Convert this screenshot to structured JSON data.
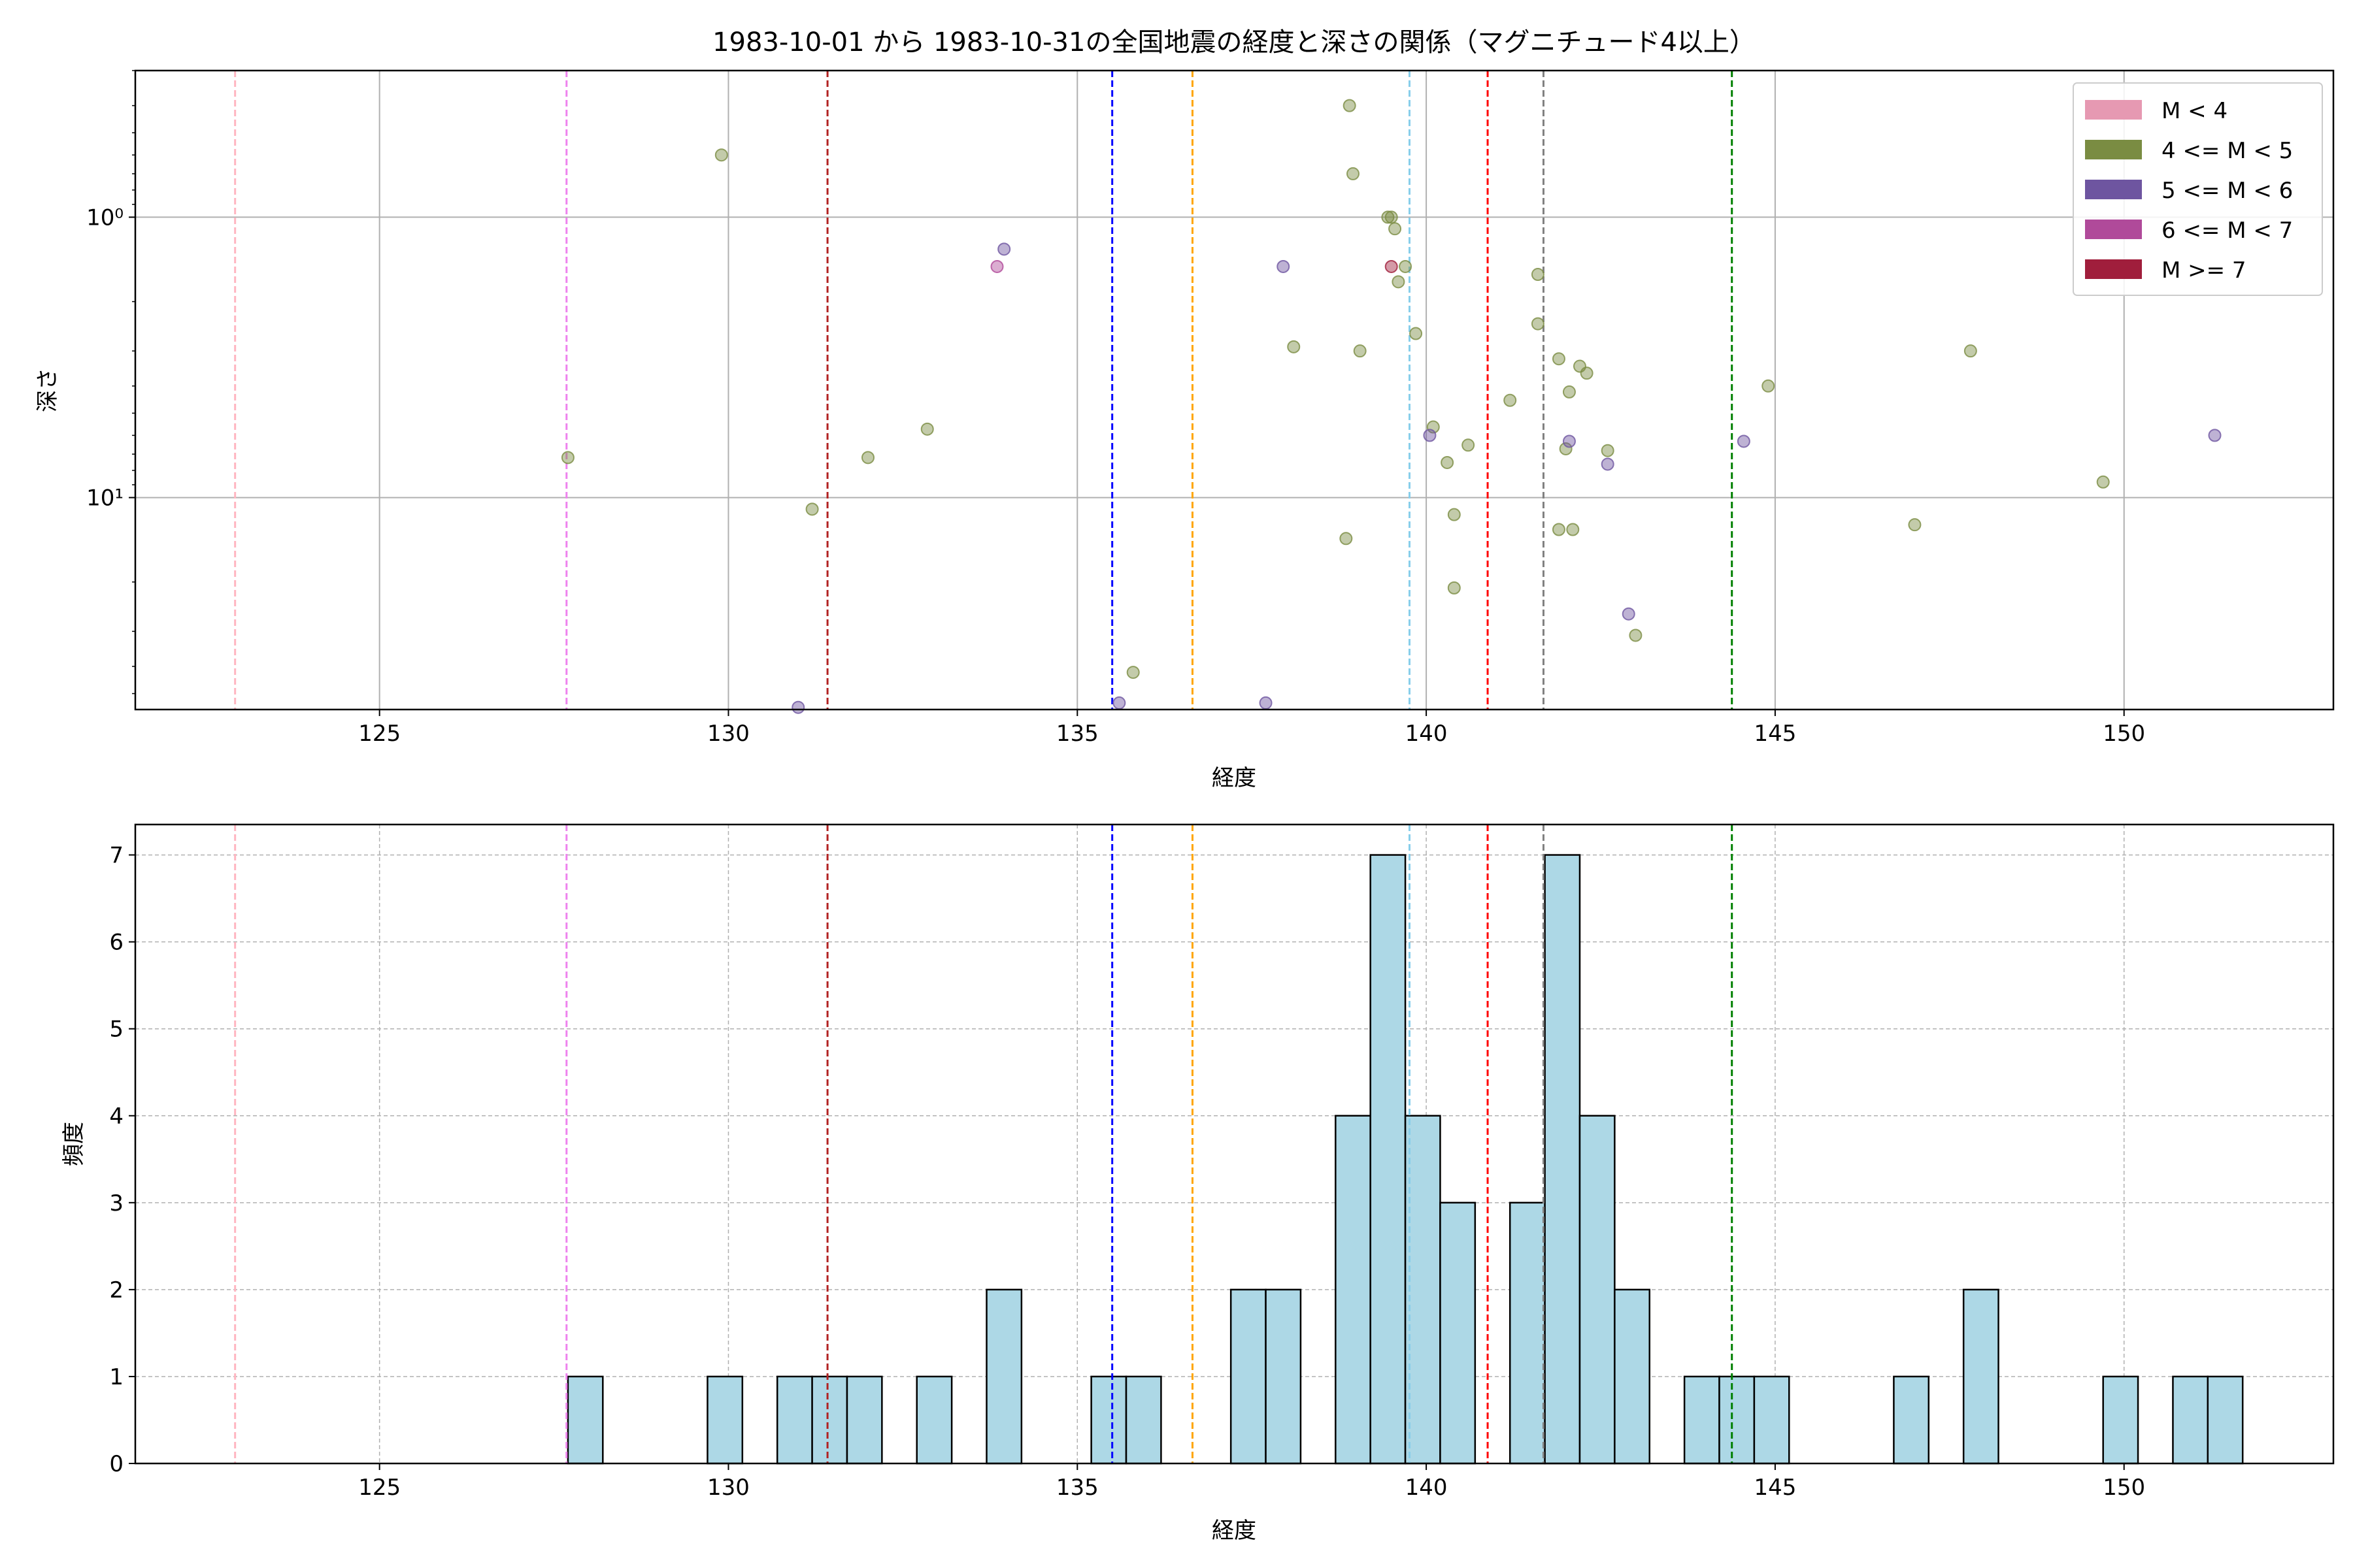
{
  "figure": {
    "title": "1983-10-01 から 1983-10-31の全国地震の経度と深さの関係（マグニチュード4以上）"
  },
  "colors": {
    "m_lt4": "#e699b2",
    "m_4_5": "#7a8c42",
    "m_5_6": "#6e55a0",
    "m_6_7": "#b04a9a",
    "m_ge7": "#a01e3c",
    "hist_fill": "#add8e6",
    "grid": "#b0b0b0"
  },
  "reference_lines": [
    {
      "x": 122.93,
      "color": "#ffb6c1"
    },
    {
      "x": 127.68,
      "color": "#ee82ee"
    },
    {
      "x": 131.42,
      "color": "#b22222"
    },
    {
      "x": 135.5,
      "color": "#0000ff"
    },
    {
      "x": 136.65,
      "color": "#ffa500"
    },
    {
      "x": 139.76,
      "color": "#87ceeb"
    },
    {
      "x": 140.88,
      "color": "#ff0000"
    },
    {
      "x": 141.68,
      "color": "#808080"
    },
    {
      "x": 144.38,
      "color": "#008000"
    }
  ],
  "chart_data": [
    {
      "type": "scatter",
      "title": "1983-10-01 から 1983-10-31の全国地震の経度と深さの関係（マグニチュード4以上）",
      "xlabel": "経度",
      "ylabel": "深さ",
      "xlim": [
        121.5,
        153.0
      ],
      "ylim": [
        0.3,
        57
      ],
      "yscale": "log",
      "yinverted": true,
      "grid": true,
      "legend_position": "top-right",
      "xticks": [
        125,
        130,
        135,
        140,
        145,
        150
      ],
      "xtick_labels": [
        "125",
        "130",
        "135",
        "140",
        "145",
        "150"
      ],
      "yticks": [
        1,
        10
      ],
      "ytick_labels": [
        "10⁰",
        "10¹"
      ],
      "legend": [
        {
          "label": "M < 4",
          "color_key": "m_lt4"
        },
        {
          "label": "4 <= M < 5",
          "color_key": "m_4_5"
        },
        {
          "label": "5 <= M < 6",
          "color_key": "m_5_6"
        },
        {
          "label": "6 <= M < 7",
          "color_key": "m_6_7"
        },
        {
          "label": "M >= 7",
          "color_key": "m_ge7"
        }
      ],
      "series": [
        {
          "name": "4 <= M < 5",
          "color_key": "m_4_5",
          "points": [
            [
              127.7,
              7.2
            ],
            [
              129.9,
              0.6
            ],
            [
              131.2,
              11.0
            ],
            [
              132.0,
              7.2
            ],
            [
              132.85,
              5.7
            ],
            [
              135.8,
              42.0
            ],
            [
              138.1,
              2.9
            ],
            [
              138.85,
              14.0
            ],
            [
              138.9,
              0.4
            ],
            [
              138.95,
              0.7
            ],
            [
              139.05,
              3.0
            ],
            [
              139.45,
              1.0
            ],
            [
              139.5,
              1.0
            ],
            [
              139.55,
              1.1
            ],
            [
              139.6,
              1.7
            ],
            [
              139.7,
              1.5
            ],
            [
              139.85,
              2.6
            ],
            [
              140.1,
              5.6
            ],
            [
              140.3,
              7.5
            ],
            [
              140.4,
              11.5
            ],
            [
              140.4,
              21.0
            ],
            [
              140.6,
              6.5
            ],
            [
              141.2,
              4.5
            ],
            [
              141.6,
              1.6
            ],
            [
              141.6,
              2.4
            ],
            [
              141.9,
              3.2
            ],
            [
              141.9,
              13.0
            ],
            [
              142.0,
              6.7
            ],
            [
              142.05,
              4.2
            ],
            [
              142.1,
              13.0
            ],
            [
              142.2,
              3.4
            ],
            [
              142.3,
              3.6
            ],
            [
              142.6,
              6.8
            ],
            [
              143.0,
              31.0
            ],
            [
              144.9,
              4.0
            ],
            [
              147.0,
              12.5
            ],
            [
              147.8,
              3.0
            ],
            [
              149.7,
              8.8
            ]
          ]
        },
        {
          "name": "5 <= M < 6",
          "color_key": "m_5_6",
          "points": [
            [
              131.0,
              56.0
            ],
            [
              133.95,
              1.3
            ],
            [
              135.6,
              54.0
            ],
            [
              137.7,
              54.0
            ],
            [
              137.95,
              1.5
            ],
            [
              140.05,
              6.0
            ],
            [
              142.05,
              6.3
            ],
            [
              142.6,
              7.6
            ],
            [
              142.9,
              26.0
            ],
            [
              144.55,
              6.3
            ],
            [
              151.3,
              6.0
            ]
          ]
        },
        {
          "name": "6 <= M < 7",
          "color_key": "m_6_7",
          "points": [
            [
              133.85,
              1.5
            ]
          ]
        },
        {
          "name": "M >= 7",
          "color_key": "m_ge7",
          "points": [
            [
              139.5,
              1.5
            ]
          ]
        }
      ]
    },
    {
      "type": "bar",
      "subtype": "histogram",
      "xlabel": "経度",
      "ylabel": "頻度",
      "xlim": [
        121.5,
        153.0
      ],
      "ylim": [
        0,
        7.35
      ],
      "grid": true,
      "xticks": [
        125,
        130,
        135,
        140,
        145,
        150
      ],
      "xtick_labels": [
        "125",
        "130",
        "135",
        "140",
        "145",
        "150"
      ],
      "yticks": [
        0,
        1,
        2,
        3,
        4,
        5,
        6,
        7
      ],
      "ytick_labels": [
        "0",
        "1",
        "2",
        "3",
        "4",
        "5",
        "6",
        "7"
      ],
      "bins": [
        {
          "x0": 127.7,
          "x1": 128.2,
          "count": 1
        },
        {
          "x0": 129.7,
          "x1": 130.2,
          "count": 1
        },
        {
          "x0": 130.7,
          "x1": 131.2,
          "count": 1
        },
        {
          "x0": 131.2,
          "x1": 131.7,
          "count": 1
        },
        {
          "x0": 131.7,
          "x1": 132.2,
          "count": 1
        },
        {
          "x0": 132.7,
          "x1": 133.2,
          "count": 1
        },
        {
          "x0": 133.7,
          "x1": 134.2,
          "count": 2
        },
        {
          "x0": 135.2,
          "x1": 135.7,
          "count": 1
        },
        {
          "x0": 135.7,
          "x1": 136.2,
          "count": 1
        },
        {
          "x0": 137.2,
          "x1": 137.7,
          "count": 2
        },
        {
          "x0": 137.7,
          "x1": 138.2,
          "count": 2
        },
        {
          "x0": 138.7,
          "x1": 139.2,
          "count": 4
        },
        {
          "x0": 139.2,
          "x1": 139.7,
          "count": 7
        },
        {
          "x0": 139.7,
          "x1": 140.2,
          "count": 4
        },
        {
          "x0": 140.2,
          "x1": 140.7,
          "count": 3
        },
        {
          "x0": 141.2,
          "x1": 141.7,
          "count": 3
        },
        {
          "x0": 141.7,
          "x1": 142.2,
          "count": 7
        },
        {
          "x0": 142.2,
          "x1": 142.7,
          "count": 4
        },
        {
          "x0": 142.7,
          "x1": 143.2,
          "count": 2
        },
        {
          "x0": 143.7,
          "x1": 144.2,
          "count": 1
        },
        {
          "x0": 144.2,
          "x1": 144.7,
          "count": 1
        },
        {
          "x0": 144.7,
          "x1": 145.2,
          "count": 1
        },
        {
          "x0": 146.7,
          "x1": 147.2,
          "count": 1
        },
        {
          "x0": 147.7,
          "x1": 148.2,
          "count": 2
        },
        {
          "x0": 149.7,
          "x1": 150.2,
          "count": 1
        },
        {
          "x0": 150.7,
          "x1": 151.2,
          "count": 1
        },
        {
          "x0": 151.2,
          "x1": 151.7,
          "count": 1
        }
      ]
    }
  ]
}
